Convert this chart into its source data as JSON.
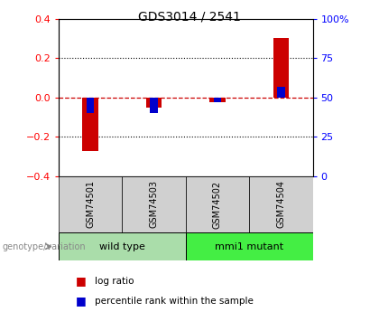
{
  "title": "GDS3014 / 2541",
  "samples": [
    "GSM74501",
    "GSM74503",
    "GSM74502",
    "GSM74504"
  ],
  "log_ratios": [
    -0.27,
    -0.05,
    -0.022,
    0.3
  ],
  "percentile_ranks": [
    40,
    40,
    47,
    57
  ],
  "groups": [
    {
      "name": "wild type",
      "start": 0,
      "end": 2,
      "color": "#aaddaa"
    },
    {
      "name": "mmi1 mutant",
      "start": 2,
      "end": 4,
      "color": "#44ee44"
    }
  ],
  "bar_color_red": "#cc0000",
  "bar_color_blue": "#0000cc",
  "ylim_left": [
    -0.4,
    0.4
  ],
  "ylim_right": [
    0,
    100
  ],
  "yticks_left": [
    -0.4,
    -0.2,
    0.0,
    0.2,
    0.4
  ],
  "yticks_right": [
    0,
    25,
    50,
    75,
    100
  ],
  "hline_color": "#cc0000",
  "dotted_color": "black",
  "background_color": "#ffffff",
  "label_red": "log ratio",
  "label_blue": "percentile rank within the sample",
  "genotype_label": "genotype/variation",
  "red_bar_width": 0.25,
  "blue_bar_width": 0.12
}
